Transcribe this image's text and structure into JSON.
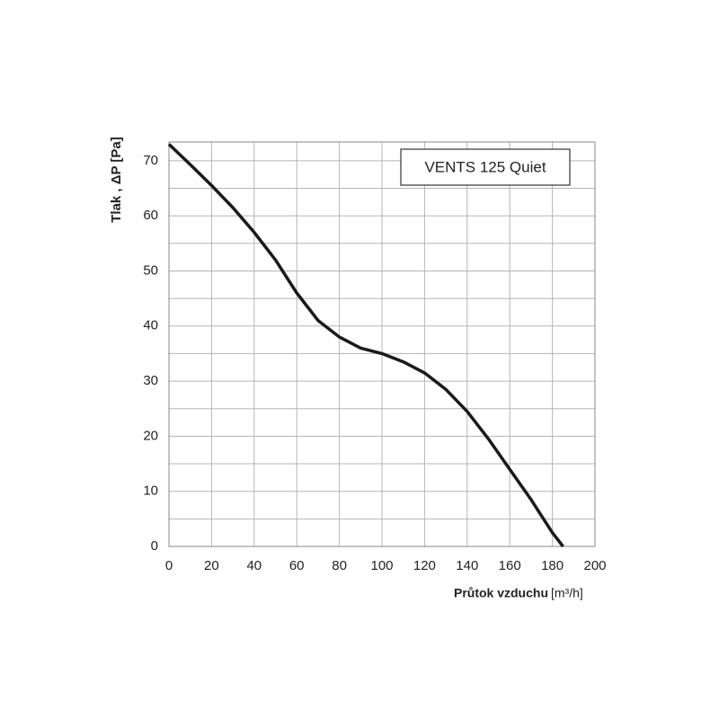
{
  "chart_data": {
    "type": "line",
    "series_label": "VENTS 125 Quiet",
    "x_label": "Průtok vzduchu",
    "x_unit": "[m³/h]",
    "y_label": "Tlak , ΔP [Pa]",
    "x": [
      0,
      10,
      20,
      30,
      40,
      50,
      60,
      70,
      80,
      90,
      100,
      110,
      120,
      130,
      140,
      150,
      160,
      170,
      180,
      185
    ],
    "values": [
      73,
      69.3,
      65.5,
      61.5,
      57,
      52,
      46,
      41,
      38,
      36,
      35,
      33.5,
      31.5,
      28.5,
      24.5,
      19.5,
      14,
      8.5,
      2.5,
      0
    ],
    "color": "#1a1a1a",
    "xlim": [
      0,
      200
    ],
    "xticks": [
      0,
      20,
      40,
      60,
      80,
      100,
      120,
      140,
      160,
      180,
      200
    ],
    "ylim": [
      0,
      73.4
    ],
    "yticks": [
      0,
      10,
      20,
      30,
      40,
      50,
      60,
      70
    ],
    "y_minor_grid": [
      5,
      15,
      25,
      35,
      45,
      55,
      65
    ],
    "grid": true
  }
}
